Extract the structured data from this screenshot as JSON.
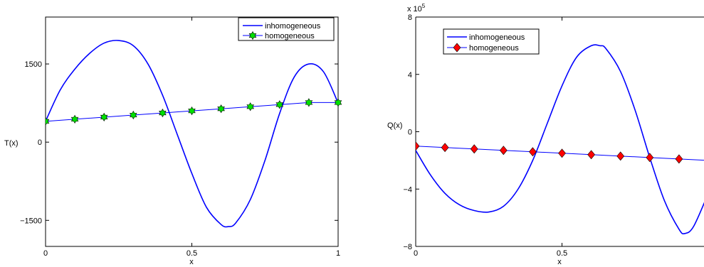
{
  "chart_data": [
    {
      "type": "line",
      "xlabel": "x",
      "ylabel": "T(x)",
      "xlim": [
        0,
        1
      ],
      "ylim": [
        -2000,
        2400
      ],
      "xticks": [
        0,
        0.5,
        1
      ],
      "xtick_labels": [
        "0",
        "0.5",
        "1"
      ],
      "yticks": [
        -1500,
        0,
        1500
      ],
      "ytick_labels": [
        "−1500",
        "0",
        "1500"
      ],
      "grid": false,
      "legend_position": "top-right",
      "series": [
        {
          "name": "inhomogeneous",
          "color": "#0000ff",
          "marker": "none",
          "x": [
            0,
            0.05,
            0.1,
            0.15,
            0.2,
            0.25,
            0.3,
            0.35,
            0.4,
            0.45,
            0.5,
            0.55,
            0.6,
            0.625,
            0.65,
            0.7,
            0.75,
            0.8,
            0.85,
            0.9,
            0.95,
            1
          ],
          "y": [
            400,
            1000,
            1400,
            1700,
            1900,
            1950,
            1850,
            1500,
            900,
            150,
            -600,
            -1250,
            -1580,
            -1620,
            -1550,
            -1100,
            -350,
            550,
            1250,
            1500,
            1350,
            750
          ]
        },
        {
          "name": "homogeneous",
          "color": "#0000ff",
          "marker": "star",
          "marker_face": "#00e000",
          "x": [
            0,
            0.1,
            0.2,
            0.3,
            0.4,
            0.5,
            0.6,
            0.7,
            0.8,
            0.9,
            1
          ],
          "y": [
            400,
            440,
            480,
            520,
            560,
            600,
            640,
            680,
            720,
            760,
            760
          ]
        }
      ]
    },
    {
      "type": "line",
      "xlabel": "x",
      "ylabel": "Q(x)",
      "exponent_label": "x 10",
      "exponent_power": "5",
      "xlim": [
        0,
        1
      ],
      "ylim": [
        -800000,
        800000
      ],
      "xticks": [
        0,
        0.5
      ],
      "xtick_labels": [
        "0",
        "0.5"
      ],
      "yticks": [
        -800000,
        -400000,
        0,
        400000,
        800000
      ],
      "ytick_labels": [
        "−8",
        "−4",
        "0",
        "4",
        "8"
      ],
      "grid": false,
      "legend_position": "top-left",
      "series": [
        {
          "name": "inhomogeneous",
          "color": "#0000ff",
          "marker": "none",
          "x": [
            0,
            0.05,
            0.1,
            0.15,
            0.2,
            0.25,
            0.3,
            0.35,
            0.4,
            0.45,
            0.5,
            0.55,
            0.6,
            0.63,
            0.65,
            0.7,
            0.75,
            0.8,
            0.85,
            0.9,
            0.92,
            0.95,
            1
          ],
          "y": [
            -130000,
            -300000,
            -430000,
            -510000,
            -550000,
            -560000,
            -520000,
            -400000,
            -200000,
            60000,
            320000,
            520000,
            600000,
            600000,
            580000,
            420000,
            150000,
            -180000,
            -480000,
            -680000,
            -710000,
            -660000,
            -430000
          ]
        },
        {
          "name": "homogeneous",
          "color": "#0000ff",
          "marker": "diamond",
          "marker_face": "#ff0000",
          "x": [
            0,
            0.1,
            0.2,
            0.3,
            0.4,
            0.5,
            0.6,
            0.7,
            0.8,
            0.9,
            1
          ],
          "y": [
            -100000,
            -110000,
            -120000,
            -130000,
            -140000,
            -150000,
            -160000,
            -170000,
            -180000,
            -190000,
            -200000
          ]
        }
      ]
    }
  ]
}
